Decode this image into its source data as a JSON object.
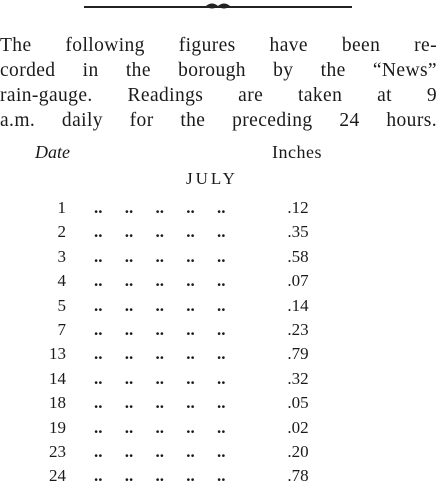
{
  "intro_lines": [
    "The following figures have been re-",
    "corded in the borough by the “News”",
    "rain-gauge. Readings are taken at 9",
    "a.m. daily for the preceding 24 hours."
  ],
  "table": {
    "date_header": "Date",
    "inches_header": "Inches",
    "month": "JULY",
    "leader": ".. .. .. .. ..",
    "rows": [
      {
        "day": "1",
        "inches": ".12"
      },
      {
        "day": "2",
        "inches": ".35"
      },
      {
        "day": "3",
        "inches": ".58"
      },
      {
        "day": "4",
        "inches": ".07"
      },
      {
        "day": "5",
        "inches": ".14"
      },
      {
        "day": "7",
        "inches": ".23"
      },
      {
        "day": "13",
        "inches": ".79"
      },
      {
        "day": "14",
        "inches": ".32"
      },
      {
        "day": "18",
        "inches": ".05"
      },
      {
        "day": "19",
        "inches": ".02"
      },
      {
        "day": "23",
        "inches": ".20"
      },
      {
        "day": "24",
        "inches": ".78"
      }
    ]
  }
}
